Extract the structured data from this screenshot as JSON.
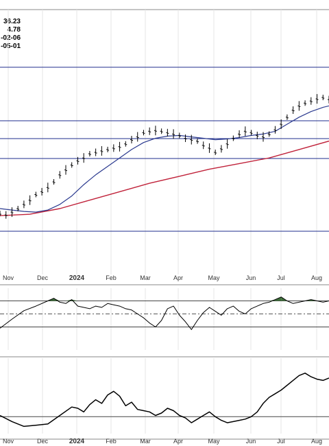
{
  "header_values": [
    "36.23",
    "4.78",
    "-02-06",
    "-05-01"
  ],
  "colors": {
    "price": "#000000",
    "ma_fast": "#2b3a8f",
    "ma_slow": "#c0223a",
    "hline": "#1f2e8c",
    "panel_line": "#000000",
    "overbought_fill": "#3e6e3a",
    "midline": "#555555"
  },
  "chart_data": [
    {
      "type": "line",
      "title": "",
      "x": [
        "Nov",
        "Dec",
        "2024",
        "Feb",
        "Mar",
        "Apr",
        "May",
        "Jun",
        "Jul",
        "Aug"
      ],
      "x_tick_labels": [
        "Nov",
        "Dec",
        "2024",
        "Feb",
        "Mar",
        "Apr",
        "May",
        "Jun",
        "Jul",
        "Aug"
      ],
      "y_ticks_visible": false,
      "horizontal_lines": [
        "top",
        "level_2",
        "level_3",
        "level_4",
        "bottom"
      ],
      "series": [
        {
          "role": "price_bars",
          "points": [
            [
              0,
              33
            ],
            [
              2,
              31
            ],
            [
              4,
              35
            ],
            [
              6,
              40
            ],
            [
              8,
              46
            ],
            [
              10,
              52
            ],
            [
              12,
              60
            ],
            [
              14,
              64
            ],
            [
              16,
              70
            ],
            [
              18,
              78
            ],
            [
              20,
              88
            ],
            [
              22,
              95
            ],
            [
              24,
              102
            ],
            [
              26,
              108
            ],
            [
              28,
              112
            ],
            [
              30,
              118
            ],
            [
              32,
              120
            ],
            [
              34,
              122
            ],
            [
              36,
              124
            ],
            [
              38,
              126
            ],
            [
              40,
              128
            ],
            [
              42,
              132
            ],
            [
              44,
              138
            ],
            [
              46,
              142
            ],
            [
              48,
              148
            ],
            [
              50,
              150
            ],
            [
              52,
              151
            ],
            [
              54,
              150
            ],
            [
              56,
              148
            ],
            [
              58,
              146
            ],
            [
              60,
              144
            ],
            [
              62,
              140
            ],
            [
              64,
              138
            ],
            [
              66,
              136
            ],
            [
              68,
              130
            ],
            [
              70,
              126
            ],
            [
              72,
              120
            ],
            [
              74,
              125
            ],
            [
              76,
              132
            ],
            [
              78,
              140
            ],
            [
              80,
              146
            ],
            [
              82,
              150
            ],
            [
              84,
              148
            ],
            [
              86,
              144
            ],
            [
              88,
              142
            ],
            [
              90,
              146
            ],
            [
              92,
              152
            ],
            [
              94,
              160
            ],
            [
              96,
              170
            ],
            [
              98,
              180
            ],
            [
              100,
              186
            ],
            [
              102,
              190
            ],
            [
              104,
              193
            ],
            [
              106,
              196
            ],
            [
              108,
              198
            ],
            [
              110,
              195
            ]
          ]
        },
        {
          "role": "ma_fast",
          "points": [
            [
              0,
              40
            ],
            [
              4,
              38
            ],
            [
              8,
              36
            ],
            [
              12,
              35
            ],
            [
              16,
              38
            ],
            [
              20,
              46
            ],
            [
              24,
              58
            ],
            [
              28,
              74
            ],
            [
              32,
              88
            ],
            [
              36,
              100
            ],
            [
              40,
              112
            ],
            [
              44,
              124
            ],
            [
              48,
              134
            ],
            [
              52,
              140
            ],
            [
              56,
              143
            ],
            [
              60,
              144
            ],
            [
              64,
              142
            ],
            [
              68,
              140
            ],
            [
              72,
              138
            ],
            [
              76,
              139
            ],
            [
              80,
              141
            ],
            [
              84,
              144
            ],
            [
              88,
              146
            ],
            [
              92,
              150
            ],
            [
              96,
              160
            ],
            [
              100,
              170
            ],
            [
              104,
              178
            ],
            [
              108,
              184
            ],
            [
              110,
              186
            ]
          ]
        },
        {
          "role": "ma_slow",
          "points": [
            [
              0,
              30
            ],
            [
              10,
              32
            ],
            [
              20,
              40
            ],
            [
              30,
              52
            ],
            [
              40,
              64
            ],
            [
              50,
              76
            ],
            [
              60,
              86
            ],
            [
              70,
              96
            ],
            [
              80,
              104
            ],
            [
              90,
              112
            ],
            [
              100,
              124
            ],
            [
              110,
              136
            ]
          ]
        }
      ]
    },
    {
      "type": "line",
      "role": "oscillator_panel",
      "upper_line": 70,
      "mid_line": 50,
      "lower_line": 30,
      "series": [
        {
          "role": "oscillator",
          "points": [
            [
              0,
              28
            ],
            [
              4,
              42
            ],
            [
              8,
              55
            ],
            [
              12,
              62
            ],
            [
              16,
              70
            ],
            [
              18,
              74
            ],
            [
              20,
              68
            ],
            [
              22,
              66
            ],
            [
              24,
              72
            ],
            [
              26,
              62
            ],
            [
              28,
              60
            ],
            [
              30,
              58
            ],
            [
              32,
              62
            ],
            [
              34,
              60
            ],
            [
              36,
              66
            ],
            [
              38,
              64
            ],
            [
              40,
              62
            ],
            [
              42,
              58
            ],
            [
              44,
              56
            ],
            [
              46,
              50
            ],
            [
              48,
              44
            ],
            [
              50,
              36
            ],
            [
              52,
              30
            ],
            [
              54,
              40
            ],
            [
              56,
              58
            ],
            [
              58,
              62
            ],
            [
              60,
              48
            ],
            [
              62,
              38
            ],
            [
              64,
              26
            ],
            [
              66,
              40
            ],
            [
              68,
              52
            ],
            [
              70,
              60
            ],
            [
              72,
              54
            ],
            [
              74,
              48
            ],
            [
              76,
              58
            ],
            [
              78,
              62
            ],
            [
              80,
              54
            ],
            [
              82,
              50
            ],
            [
              84,
              58
            ],
            [
              86,
              62
            ],
            [
              88,
              66
            ],
            [
              90,
              68
            ],
            [
              92,
              72
            ],
            [
              94,
              76
            ],
            [
              96,
              70
            ],
            [
              98,
              66
            ],
            [
              100,
              68
            ],
            [
              102,
              70
            ],
            [
              104,
              72
            ],
            [
              106,
              70
            ],
            [
              108,
              68
            ],
            [
              110,
              70
            ]
          ]
        }
      ]
    },
    {
      "type": "line",
      "role": "lower_indicator_panel",
      "series": [
        {
          "role": "indicator",
          "points": [
            [
              0,
              30
            ],
            [
              4,
              20
            ],
            [
              8,
              12
            ],
            [
              12,
              14
            ],
            [
              16,
              16
            ],
            [
              20,
              30
            ],
            [
              24,
              44
            ],
            [
              26,
              42
            ],
            [
              28,
              36
            ],
            [
              30,
              48
            ],
            [
              32,
              56
            ],
            [
              34,
              50
            ],
            [
              36,
              64
            ],
            [
              38,
              70
            ],
            [
              40,
              62
            ],
            [
              42,
              46
            ],
            [
              44,
              52
            ],
            [
              46,
              40
            ],
            [
              48,
              38
            ],
            [
              50,
              36
            ],
            [
              52,
              30
            ],
            [
              54,
              34
            ],
            [
              56,
              42
            ],
            [
              58,
              38
            ],
            [
              60,
              30
            ],
            [
              62,
              26
            ],
            [
              64,
              18
            ],
            [
              66,
              24
            ],
            [
              68,
              30
            ],
            [
              70,
              36
            ],
            [
              72,
              28
            ],
            [
              74,
              22
            ],
            [
              76,
              18
            ],
            [
              78,
              20
            ],
            [
              80,
              22
            ],
            [
              82,
              24
            ],
            [
              84,
              28
            ],
            [
              86,
              36
            ],
            [
              88,
              50
            ],
            [
              90,
              60
            ],
            [
              92,
              66
            ],
            [
              94,
              72
            ],
            [
              96,
              80
            ],
            [
              98,
              88
            ],
            [
              100,
              96
            ],
            [
              102,
              100
            ],
            [
              104,
              94
            ],
            [
              106,
              90
            ],
            [
              108,
              88
            ],
            [
              110,
              92
            ]
          ]
        }
      ]
    }
  ]
}
